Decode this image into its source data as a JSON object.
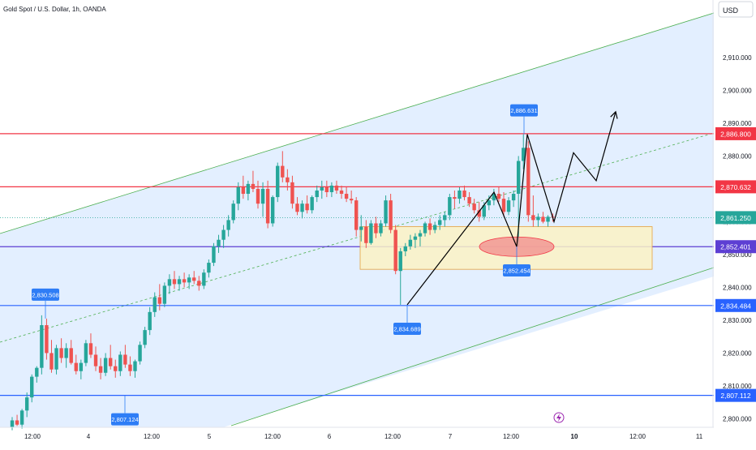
{
  "header": {
    "title": "Gold Spot / U.S. Dollar, 1h, OANDA",
    "currency": "USD"
  },
  "colors": {
    "up": "#26a69a",
    "down": "#ef5350",
    "channel_fill": "#e3efff",
    "channel_line": "#4caf50",
    "resistance": "#f23645",
    "support": "#2962ff",
    "mid_line": "#5d3fd3",
    "zone_fill": "#fbf2c4",
    "zone_border": "#e6a23c",
    "ellipse": "#f28b8b",
    "callout": "#2e7df6",
    "price_label": "#f23645",
    "current": "#26a69a"
  },
  "price_axis": {
    "ticks": [
      "2,910.000",
      "2,900.000",
      "2,890.000",
      "2,880.000",
      "2,870.000",
      "2,860.000",
      "2,850.000",
      "2,840.000",
      "2,830.000",
      "2,820.000",
      "2,810.000",
      "2,800.000"
    ],
    "tick_values": [
      2910,
      2900,
      2890,
      2880,
      2870,
      2860,
      2850,
      2840,
      2830,
      2820,
      2810,
      2800
    ],
    "range": [
      2796,
      2918
    ]
  },
  "time_axis": {
    "ticks": [
      "12:00",
      "4",
      "12:00",
      "5",
      "12:00",
      "6",
      "12:00",
      "7",
      "12:00",
      "10",
      "12:00",
      "11"
    ],
    "bold": [
      false,
      false,
      false,
      false,
      false,
      false,
      false,
      false,
      false,
      true,
      false,
      false
    ]
  },
  "levels": [
    {
      "label": "2,886.800",
      "value": 2886.8,
      "kind": "resistance"
    },
    {
      "label": "2,870.632",
      "value": 2870.632,
      "kind": "resistance"
    },
    {
      "label": "2,861.250",
      "value": 2861.25,
      "kind": "current"
    },
    {
      "label": "2,852.401",
      "value": 2852.401,
      "kind": "mid"
    },
    {
      "label": "2,834.484",
      "value": 2834.484,
      "kind": "support"
    },
    {
      "label": "2,807.112",
      "value": 2807.112,
      "kind": "support"
    }
  ],
  "callouts": [
    {
      "label": "2,830.508",
      "value": 2830.508,
      "below": false
    },
    {
      "label": "2,807.124",
      "value": 2807.124,
      "below": true
    },
    {
      "label": "2,834.689",
      "value": 2834.689,
      "below": true
    },
    {
      "label": "2,886.631",
      "value": 2886.631,
      "below": false
    },
    {
      "label": "2,852.454",
      "value": 2852.454,
      "below": true
    }
  ],
  "chart_data": {
    "type": "candlestick",
    "title": "Gold Spot / U.S. Dollar, 1h, OANDA",
    "ylim": [
      2796,
      2918
    ],
    "bars": [
      [
        2797.5,
        2800.5,
        2796.5,
        2799.5
      ],
      [
        2799.5,
        2801.2,
        2797.8,
        2798.2
      ],
      [
        2798.2,
        2803,
        2797,
        2802.5
      ],
      [
        2802.5,
        2808,
        2800.5,
        2806.5
      ],
      [
        2806.5,
        2813.5,
        2805,
        2812.8
      ],
      [
        2812.8,
        2816,
        2811,
        2815.5
      ],
      [
        2815.5,
        2831.5,
        2813.5,
        2828.5
      ],
      [
        2828.5,
        2830.5,
        2818,
        2820
      ],
      [
        2820,
        2824,
        2814,
        2815
      ],
      [
        2815,
        2822.5,
        2813.5,
        2821.5
      ],
      [
        2821.5,
        2824.5,
        2817,
        2818.5
      ],
      [
        2818.5,
        2823,
        2815.5,
        2821.5
      ],
      [
        2821.5,
        2824,
        2816.5,
        2817
      ],
      [
        2817,
        2819.5,
        2813.5,
        2814.5
      ],
      [
        2814.5,
        2818,
        2812,
        2817
      ],
      [
        2817,
        2824,
        2816,
        2823
      ],
      [
        2823,
        2826,
        2818.5,
        2819.5
      ],
      [
        2819.5,
        2822,
        2814.5,
        2816
      ],
      [
        2816,
        2818.5,
        2812,
        2814
      ],
      [
        2814,
        2820,
        2813,
        2818.5
      ],
      [
        2818.5,
        2822.5,
        2815,
        2816
      ],
      [
        2816,
        2818,
        2812.5,
        2814.5
      ],
      [
        2814.5,
        2820.5,
        2813,
        2819.5
      ],
      [
        2819.5,
        2822.5,
        2815.5,
        2816.5
      ],
      [
        2816.5,
        2819,
        2813,
        2814.5
      ],
      [
        2814.5,
        2818,
        2812.5,
        2817.5
      ],
      [
        2817.5,
        2823.5,
        2816.5,
        2822.5
      ],
      [
        2822.5,
        2828,
        2821.5,
        2827
      ],
      [
        2827,
        2834,
        2825.5,
        2832.5
      ],
      [
        2832.5,
        2838.5,
        2831,
        2837
      ],
      [
        2837,
        2841,
        2833,
        2835
      ],
      [
        2835,
        2841.5,
        2834,
        2840.5
      ],
      [
        2840.5,
        2844,
        2838,
        2842.5
      ],
      [
        2842.5,
        2845,
        2839.5,
        2841
      ],
      [
        2841,
        2843.5,
        2839,
        2842.5
      ],
      [
        2842.5,
        2844.5,
        2840,
        2841.5
      ],
      [
        2841.5,
        2844,
        2839.5,
        2843
      ],
      [
        2843,
        2845,
        2841,
        2842
      ],
      [
        2842,
        2843.5,
        2839,
        2840.5
      ],
      [
        2840.5,
        2845.5,
        2839.5,
        2844.5
      ],
      [
        2844.5,
        2848.5,
        2843,
        2847.5
      ],
      [
        2847.5,
        2853.5,
        2846.5,
        2852.5
      ],
      [
        2852.5,
        2856,
        2850.5,
        2854.5
      ],
      [
        2854.5,
        2859,
        2852,
        2857.5
      ],
      [
        2857.5,
        2862,
        2855.5,
        2860.5
      ],
      [
        2860.5,
        2866.5,
        2859.5,
        2865.5
      ],
      [
        2865.5,
        2872,
        2863.5,
        2870.5
      ],
      [
        2870.5,
        2874,
        2867,
        2868.5
      ],
      [
        2868.5,
        2872.5,
        2866.5,
        2871.5
      ],
      [
        2871.5,
        2875.5,
        2869,
        2870
      ],
      [
        2870,
        2872.5,
        2864,
        2865.5
      ],
      [
        2865.5,
        2872,
        2861.5,
        2870
      ],
      [
        2870,
        2872.5,
        2858,
        2859.5
      ],
      [
        2859.5,
        2868,
        2858.5,
        2867.5
      ],
      [
        2867.5,
        2878,
        2866,
        2877
      ],
      [
        2877,
        2881.5,
        2872,
        2873.5
      ],
      [
        2873.5,
        2876,
        2869.5,
        2872
      ],
      [
        2872,
        2874,
        2864,
        2865.5
      ],
      [
        2865.5,
        2867.5,
        2862,
        2863
      ],
      [
        2863,
        2866.5,
        2861,
        2865.5
      ],
      [
        2865.5,
        2868,
        2862.5,
        2863.5
      ],
      [
        2863.5,
        2868,
        2862.5,
        2867.5
      ],
      [
        2867.5,
        2871,
        2866,
        2869.5
      ],
      [
        2869.5,
        2872.5,
        2867,
        2870.5
      ],
      [
        2870.5,
        2872.5,
        2867.5,
        2869
      ],
      [
        2869,
        2872,
        2867.5,
        2871
      ],
      [
        2871,
        2872.5,
        2868.5,
        2869.5
      ],
      [
        2869.5,
        2871,
        2867,
        2868.5
      ],
      [
        2868.5,
        2870.5,
        2866,
        2867
      ],
      [
        2867,
        2869.5,
        2865.5,
        2866.5
      ],
      [
        2866.5,
        2867.5,
        2855.5,
        2857.5
      ],
      [
        2857.5,
        2862,
        2854,
        2858.5
      ],
      [
        2858.5,
        2860.5,
        2852,
        2853.5
      ],
      [
        2853.5,
        2860.5,
        2853,
        2859.5
      ],
      [
        2859.5,
        2861.5,
        2855,
        2856.5
      ],
      [
        2856.5,
        2860.5,
        2855.5,
        2859.5
      ],
      [
        2859.5,
        2868,
        2858.5,
        2866.5
      ],
      [
        2866.5,
        2868.5,
        2856.5,
        2857.5
      ],
      [
        2857.5,
        2859,
        2844,
        2845
      ],
      [
        2845,
        2852,
        2834.7,
        2851
      ],
      [
        2851,
        2853.5,
        2849.5,
        2852.5
      ],
      [
        2852.5,
        2856,
        2851.5,
        2854.5
      ],
      [
        2854.5,
        2856.5,
        2852,
        2855.5
      ],
      [
        2855.5,
        2857.5,
        2852.5,
        2856.5
      ],
      [
        2856.5,
        2860,
        2855.5,
        2859.5
      ],
      [
        2859.5,
        2861,
        2856,
        2857.5
      ],
      [
        2857.5,
        2860,
        2856.5,
        2859
      ],
      [
        2859,
        2862,
        2857.5,
        2860.5
      ],
      [
        2860.5,
        2863,
        2858.5,
        2862
      ],
      [
        2862,
        2868.5,
        2860.5,
        2867.5
      ],
      [
        2867.5,
        2869.5,
        2864,
        2867
      ],
      [
        2867,
        2870.5,
        2865.5,
        2869.5
      ],
      [
        2869.5,
        2871,
        2866.5,
        2867.5
      ],
      [
        2867.5,
        2869,
        2864.5,
        2865.5
      ],
      [
        2865.5,
        2867,
        2862.5,
        2863.5
      ],
      [
        2863.5,
        2866,
        2860,
        2861.5
      ],
      [
        2861.5,
        2866,
        2860.5,
        2865
      ],
      [
        2865,
        2868,
        2863.5,
        2866.5
      ],
      [
        2866.5,
        2870,
        2865,
        2868.5
      ],
      [
        2868.5,
        2870.5,
        2866,
        2867
      ],
      [
        2867,
        2869,
        2861.5,
        2863
      ],
      [
        2863,
        2867.5,
        2862,
        2866.5
      ],
      [
        2866.5,
        2869.5,
        2864.5,
        2868.5
      ],
      [
        2868.5,
        2880,
        2852.5,
        2878.5
      ],
      [
        2878.5,
        2886.6,
        2876,
        2882.5
      ],
      [
        2882.5,
        2884.5,
        2860,
        2862
      ],
      [
        2862,
        2868,
        2858.5,
        2860.5
      ],
      [
        2860.5,
        2862.5,
        2858.5,
        2861.5
      ],
      [
        2861.5,
        2863,
        2859.5,
        2860
      ],
      [
        2860,
        2862,
        2858.5,
        2861.5
      ],
      [
        2861.5,
        2862.5,
        2860,
        2861.25
      ]
    ],
    "levels": [
      2886.8,
      2870.632,
      2861.25,
      2852.401,
      2834.484,
      2807.112
    ],
    "annotations": [
      "2,830.508",
      "2,807.124",
      "2,834.689",
      "2,886.631",
      "2,852.454"
    ]
  }
}
